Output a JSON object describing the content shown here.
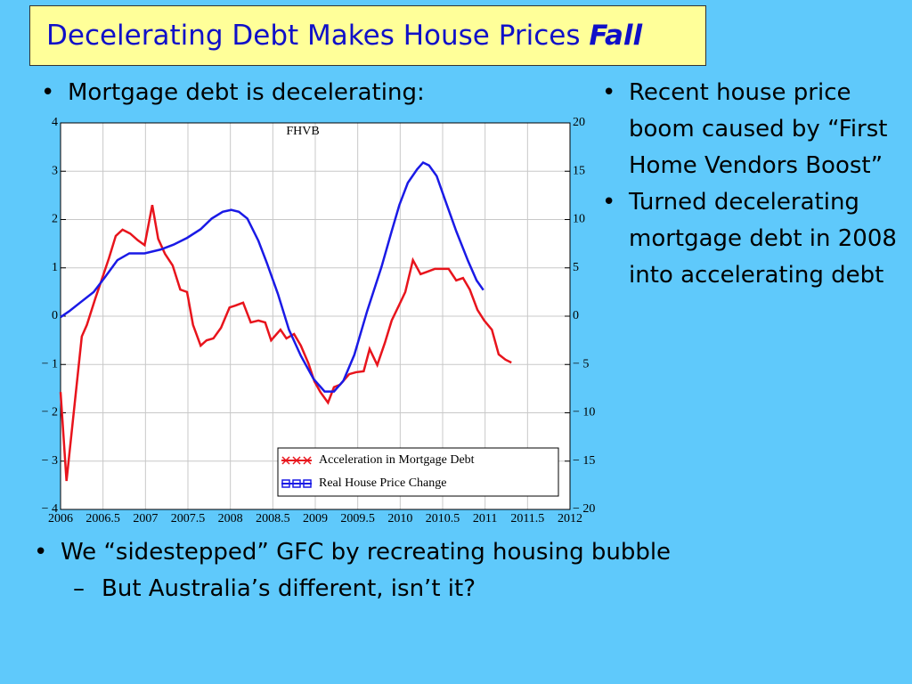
{
  "title": {
    "text": "Decelerating Debt Makes House Prices",
    "emphasis": "Fall"
  },
  "bullets_left": [
    "Mortgage debt is decelerating:"
  ],
  "bullets_right": [
    "Recent house price boom caused by “First Home Vendors Boost”",
    "Turned decelerating mortgage debt in 2008 into accelerating debt"
  ],
  "bullets_bottom": [
    {
      "text": "We “sidestepped” GFC by recreating housing bubble",
      "sub": [
        "But Australia’s different, isn’t it?"
      ]
    }
  ],
  "chart_data": {
    "type": "line",
    "annotation": "FHVB",
    "grid": true,
    "legend": "lower right",
    "xlim": [
      2006,
      2012
    ],
    "xticks": [
      2006,
      2006.5,
      2007,
      2007.5,
      2008,
      2008.5,
      2009,
      2009.5,
      2010,
      2010.5,
      2011,
      2011.5,
      2012
    ],
    "ylim": [
      -4,
      4
    ],
    "yticks": [
      {
        "value": -4,
        "label": "− 4"
      },
      {
        "value": -3,
        "label": "− 3"
      },
      {
        "value": -2,
        "label": "− 2"
      },
      {
        "value": -1,
        "label": "− 1"
      },
      0,
      1,
      2,
      3,
      4
    ],
    "y2lim": [
      -20,
      20
    ],
    "y2ticks": [
      {
        "value": -20,
        "label": "− 20"
      },
      {
        "value": -15,
        "label": "− 15"
      },
      {
        "value": -10,
        "label": "− 10"
      },
      {
        "value": -5,
        "label": "− 5"
      },
      0,
      5,
      10,
      15,
      20
    ],
    "series": [
      {
        "name": "Acceleration in Mortgage Debt",
        "color": "#e8141c",
        "axis": "y",
        "x": [
          2006.0,
          2006.07,
          2006.25,
          2006.31,
          2006.41,
          2006.47,
          2006.57,
          2006.65,
          2006.73,
          2006.82,
          2006.91,
          2006.99,
          2007.08,
          2007.15,
          2007.23,
          2007.32,
          2007.41,
          2007.49,
          2007.56,
          2007.65,
          2007.72,
          2007.8,
          2007.89,
          2007.99,
          2008.06,
          2008.15,
          2008.24,
          2008.33,
          2008.41,
          2008.48,
          2008.59,
          2008.66,
          2008.75,
          2008.83,
          2008.92,
          2008.99,
          2009.06,
          2009.15,
          2009.22,
          2009.29,
          2009.4,
          2009.48,
          2009.57,
          2009.64,
          2009.73,
          2009.82,
          2009.9,
          2009.99,
          2010.06,
          2010.15,
          2010.24,
          2010.32,
          2010.41,
          2010.49,
          2010.57,
          2010.66,
          2010.74,
          2010.82,
          2010.91,
          2010.99,
          2011.08,
          2011.16,
          2011.24,
          2011.31
        ],
        "values": [
          -1.57,
          -3.41,
          -0.42,
          -0.18,
          0.37,
          0.68,
          1.2,
          1.66,
          1.79,
          1.71,
          1.57,
          1.47,
          2.3,
          1.6,
          1.29,
          1.05,
          0.55,
          0.5,
          -0.18,
          -0.61,
          -0.5,
          -0.46,
          -0.24,
          0.18,
          0.22,
          0.28,
          -0.13,
          -0.09,
          -0.13,
          -0.5,
          -0.28,
          -0.46,
          -0.37,
          -0.61,
          -0.98,
          -1.35,
          -1.57,
          -1.79,
          -1.47,
          -1.42,
          -1.2,
          -1.16,
          -1.14,
          -0.68,
          -1.01,
          -0.55,
          -0.09,
          0.24,
          0.5,
          1.16,
          0.87,
          0.92,
          0.98,
          0.98,
          0.98,
          0.74,
          0.79,
          0.55,
          0.13,
          -0.09,
          -0.28,
          -0.79,
          -0.9,
          -0.96
        ]
      },
      {
        "name": "Real House Price Change",
        "color": "#1a1ae6",
        "axis": "y2",
        "x": [
          2006.0,
          2006.1,
          2006.23,
          2006.39,
          2006.52,
          2006.67,
          2006.81,
          2006.99,
          2007.18,
          2007.33,
          2007.49,
          2007.65,
          2007.78,
          2007.91,
          2008.01,
          2008.1,
          2008.2,
          2008.33,
          2008.43,
          2008.56,
          2008.69,
          2008.83,
          2008.98,
          2009.11,
          2009.22,
          2009.33,
          2009.46,
          2009.61,
          2009.78,
          2009.9,
          2009.99,
          2010.09,
          2010.2,
          2010.27,
          2010.34,
          2010.43,
          2010.53,
          2010.66,
          2010.8,
          2010.9,
          2010.98
        ],
        "values": [
          -0.1,
          0.5,
          1.4,
          2.5,
          4.0,
          5.8,
          6.5,
          6.5,
          6.9,
          7.4,
          8.1,
          9.0,
          10.1,
          10.8,
          11.0,
          10.8,
          10.1,
          7.8,
          5.5,
          2.3,
          -1.4,
          -4.1,
          -6.5,
          -7.8,
          -7.8,
          -6.7,
          -4.0,
          0.5,
          5.1,
          8.8,
          11.5,
          13.8,
          15.2,
          15.9,
          15.6,
          14.5,
          12.0,
          8.8,
          5.7,
          3.7,
          2.7
        ]
      }
    ]
  }
}
